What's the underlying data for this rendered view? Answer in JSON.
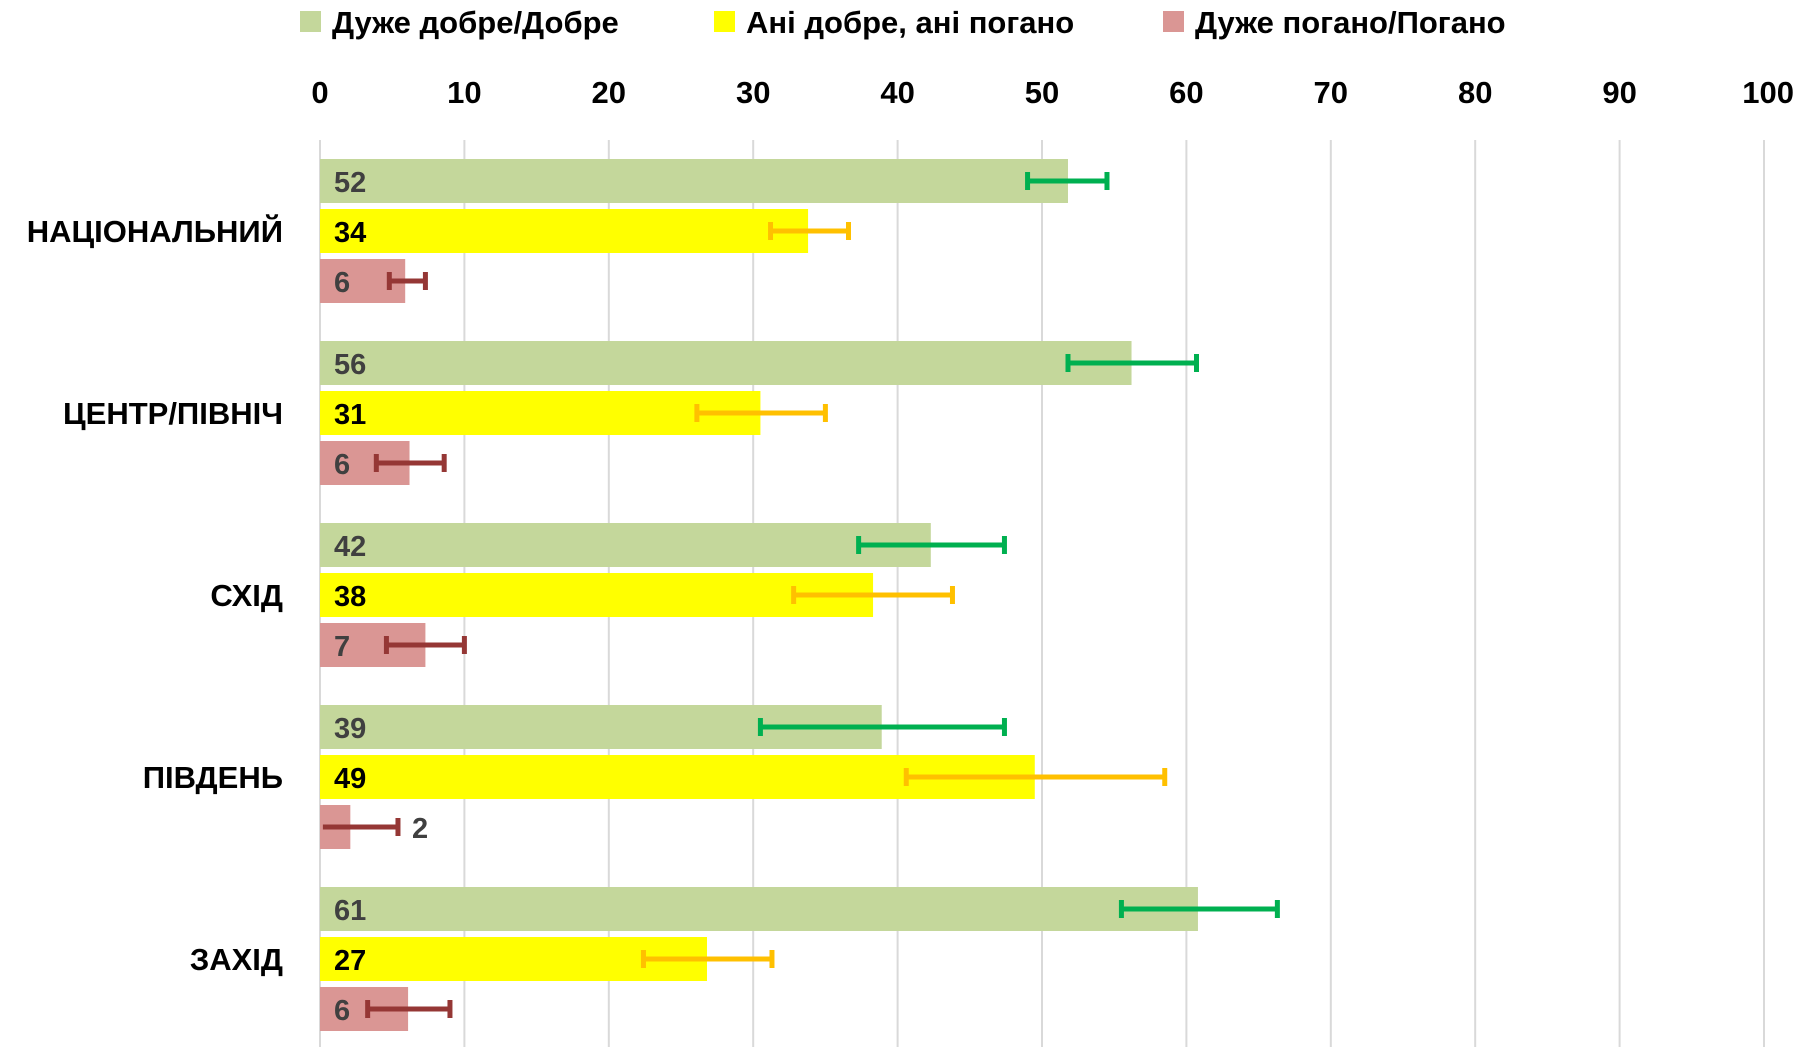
{
  "chart_data": {
    "type": "bar",
    "orientation": "horizontal",
    "title": "",
    "xlabel": "",
    "ylabel": "",
    "xlim": [
      0,
      100
    ],
    "x_ticks": [
      0,
      10,
      20,
      30,
      40,
      50,
      60,
      70,
      80,
      90,
      100
    ],
    "grid": "vertical",
    "legend_position": "top",
    "categories": [
      "НАЦІОНАЛЬНИЙ",
      "ЦЕНТР/ПІВНІЧ",
      "СХІД",
      "ПІВДЕНЬ",
      "ЗАХІД"
    ],
    "series": [
      {
        "name": "Дуже добре/Добре",
        "color": "#c4d79b",
        "error_color": "#00b050",
        "label_color": "#404040",
        "values": [
          52,
          56,
          42,
          39,
          61
        ],
        "bar_lengths": [
          51.8,
          56.2,
          42.3,
          38.9,
          60.8
        ],
        "error_low": [
          49,
          51.8,
          37.3,
          30.5,
          55.5
        ],
        "error_high": [
          54.5,
          60.7,
          47.4,
          47.4,
          66.3
        ]
      },
      {
        "name": "Ані добре, ані погано",
        "color": "#ffff00",
        "error_color": "#ffc000",
        "label_color": "#000000",
        "values": [
          34,
          31,
          38,
          49,
          27
        ],
        "bar_lengths": [
          33.8,
          30.5,
          38.3,
          49.5,
          26.8
        ],
        "error_low": [
          31.2,
          26.1,
          32.8,
          40.6,
          22.4
        ],
        "error_high": [
          36.6,
          35,
          43.8,
          58.5,
          31.3
        ]
      },
      {
        "name": "Дуже погано/Погано",
        "color": "#da9694",
        "error_color": "#953735",
        "label_color": "#404040",
        "values": [
          6,
          6,
          7,
          2,
          6
        ],
        "bar_lengths": [
          5.9,
          6.2,
          7.3,
          2.1,
          6.1
        ],
        "error_low": [
          4.8,
          3.9,
          4.6,
          0.2,
          3.3
        ],
        "error_high": [
          7.3,
          8.6,
          10,
          5.4,
          9
        ],
        "label_outside": [
          false,
          false,
          false,
          true,
          false
        ]
      }
    ]
  }
}
